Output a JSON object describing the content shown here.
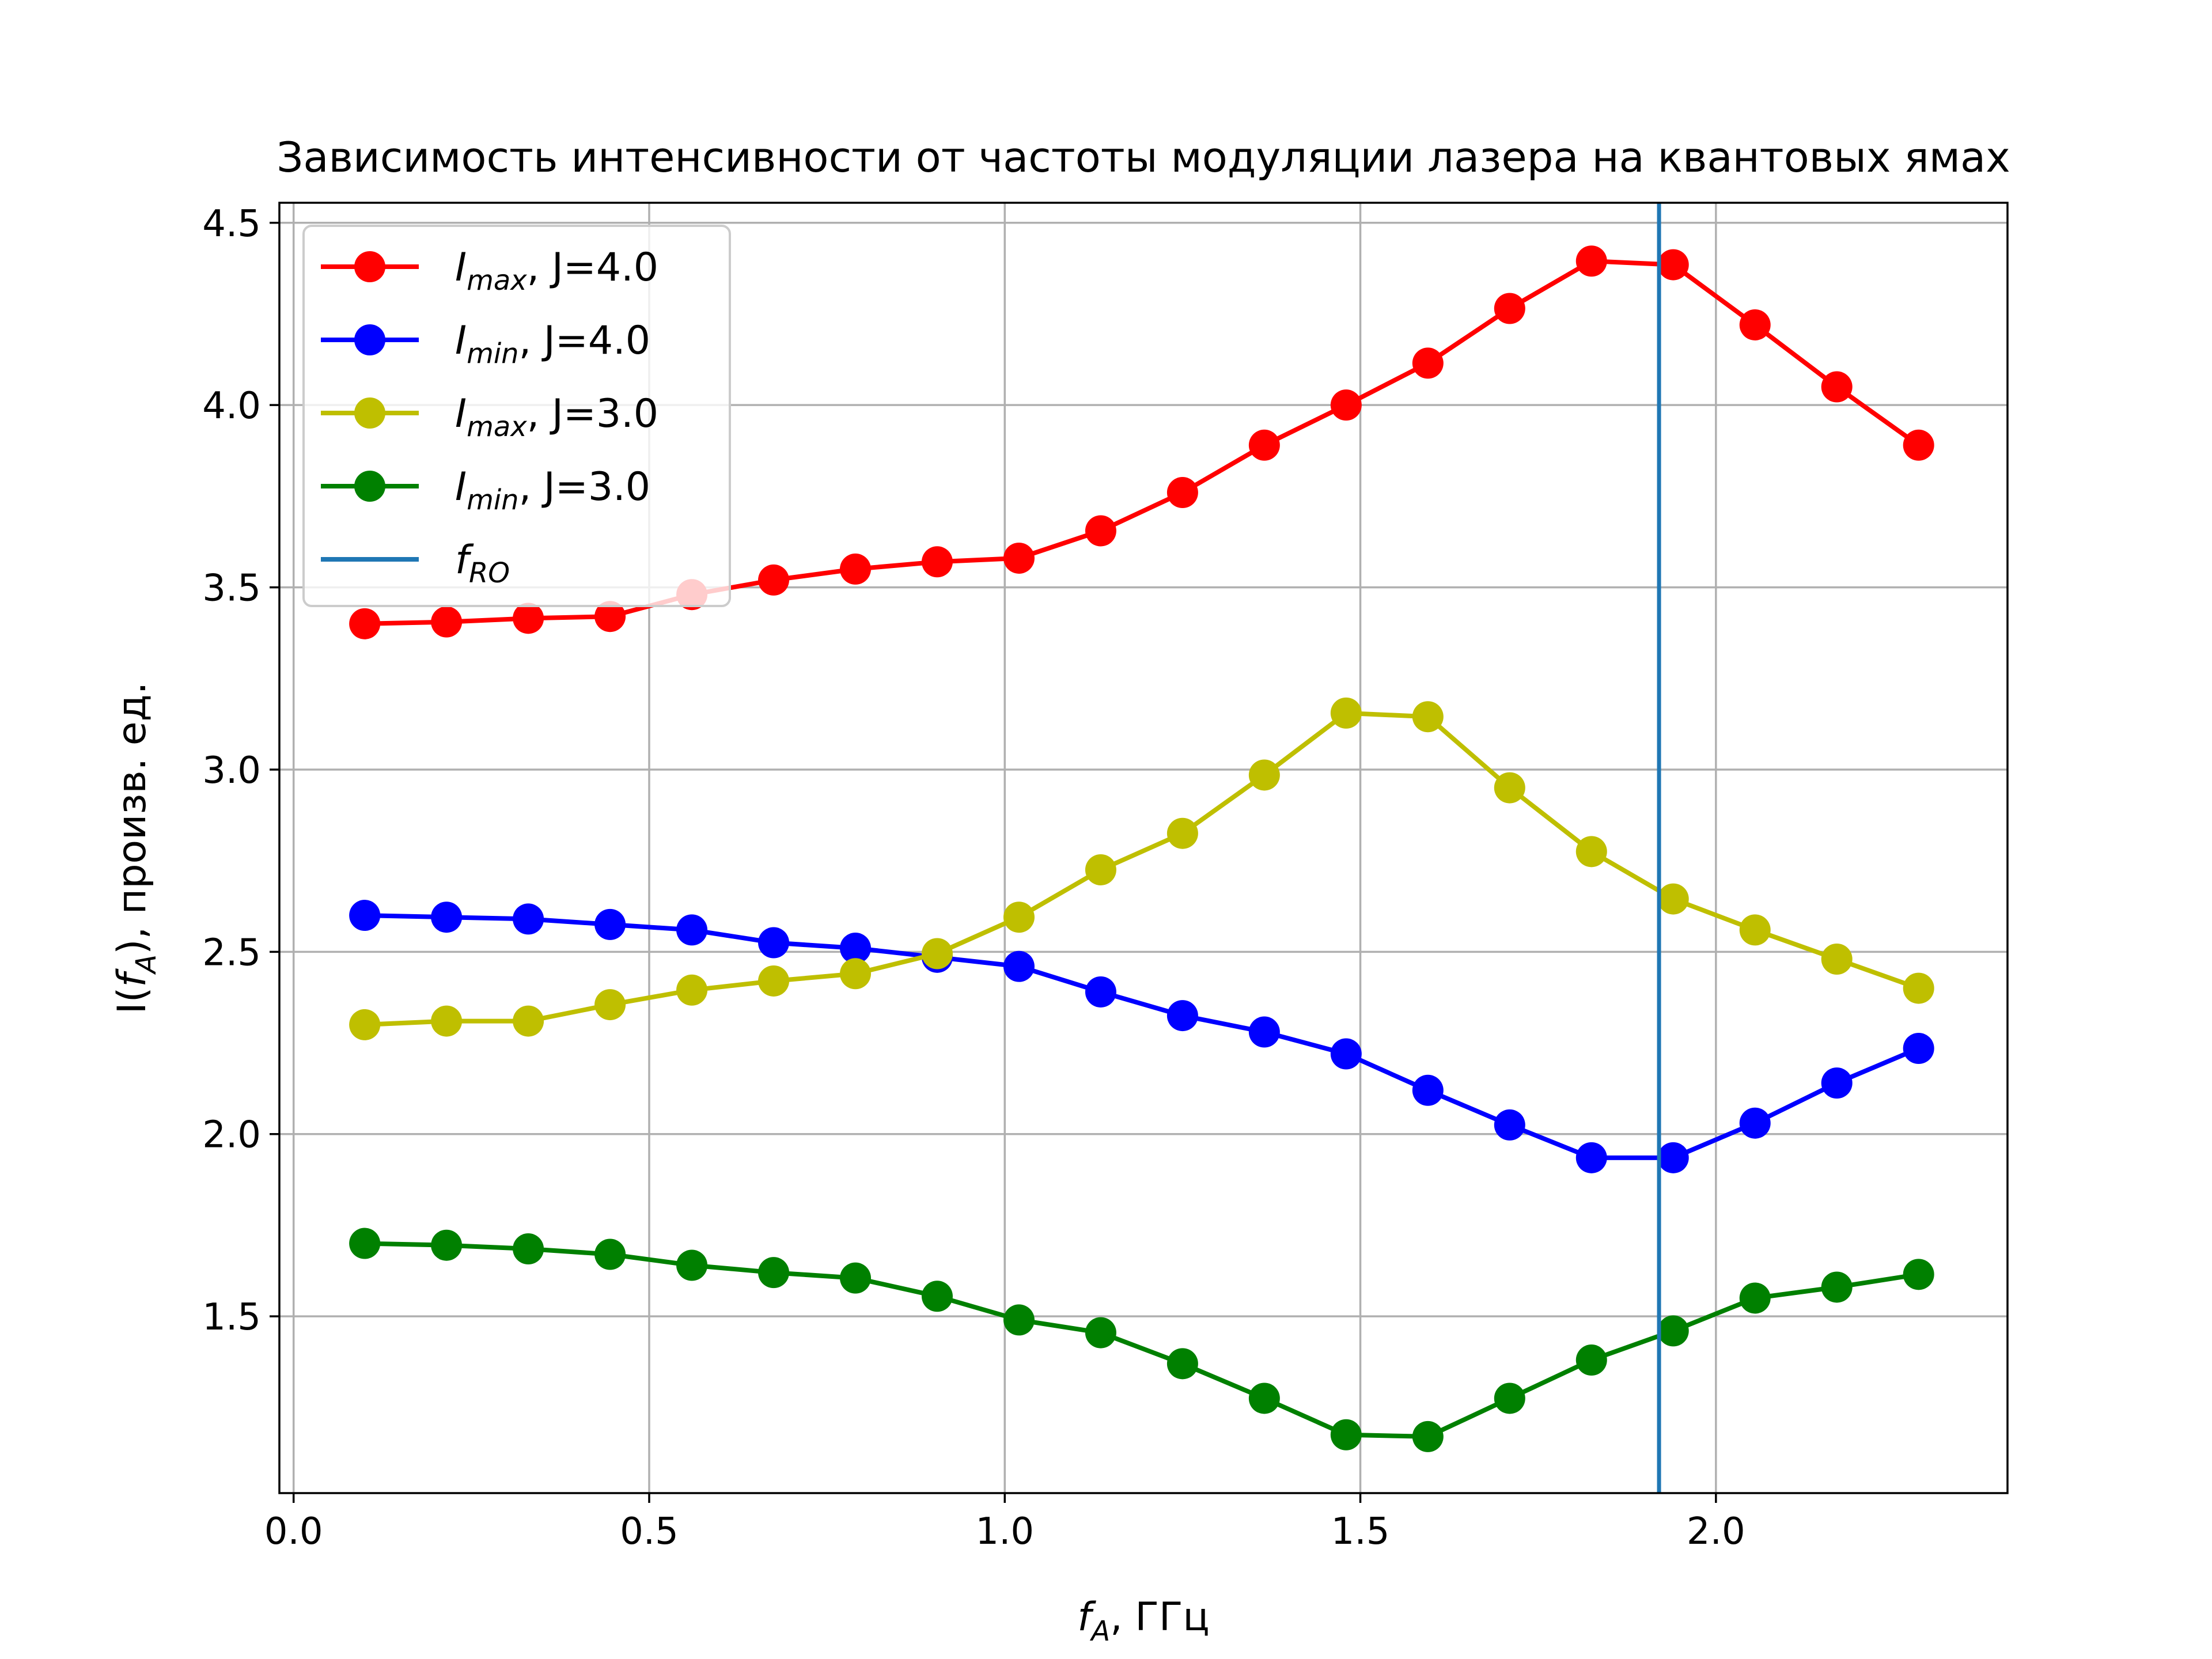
{
  "chart_data": {
    "type": "line",
    "title": "Зависимость интенсивности от частоты модуляции лазера на квантовых ямах",
    "xlabel": {
      "base": "f",
      "sub": "A",
      "rest": ", ГГц"
    },
    "ylabel": {
      "pre": "I(",
      "base": "f",
      "sub": "A",
      "rest": "), произв. ед."
    },
    "xlim": [
      -0.02,
      2.41
    ],
    "ylim": [
      1.015,
      4.555
    ],
    "xticks": [
      0.0,
      0.5,
      1.0,
      1.5,
      2.0
    ],
    "xtick_labels": [
      "0.0",
      "0.5",
      "1.0",
      "1.5",
      "2.0"
    ],
    "yticks": [
      1.5,
      2.0,
      2.5,
      3.0,
      3.5,
      4.0,
      4.5
    ],
    "ytick_labels": [
      "1.5",
      "2.0",
      "2.5",
      "3.0",
      "3.5",
      "4.0",
      "4.5"
    ],
    "grid": true,
    "legend_position": "top-left",
    "x": [
      0.1,
      0.215,
      0.33,
      0.445,
      0.56,
      0.675,
      0.79,
      0.905,
      1.02,
      1.135,
      1.25,
      1.365,
      1.48,
      1.595,
      1.71,
      1.825,
      1.94,
      2.055,
      2.17,
      2.285
    ],
    "series": [
      {
        "name": "I_max, J=4.0",
        "legend_base": "I",
        "legend_sub": "max",
        "legend_rest": ", J=4.0",
        "color": "#ff0000",
        "values": [
          3.4,
          3.405,
          3.415,
          3.42,
          3.48,
          3.52,
          3.55,
          3.57,
          3.58,
          3.655,
          3.76,
          3.89,
          4.0,
          4.115,
          4.265,
          4.395,
          4.385,
          4.22,
          4.05,
          3.89
        ]
      },
      {
        "name": "I_min, J=4.0",
        "legend_base": "I",
        "legend_sub": "min",
        "legend_rest": ", J=4.0",
        "color": "#0000ff",
        "values": [
          2.6,
          2.595,
          2.59,
          2.575,
          2.56,
          2.525,
          2.51,
          2.485,
          2.46,
          2.39,
          2.325,
          2.28,
          2.22,
          2.12,
          2.025,
          1.935,
          1.935,
          2.03,
          2.14,
          2.235
        ]
      },
      {
        "name": "I_max, J=3.0",
        "legend_base": "I",
        "legend_sub": "max",
        "legend_rest": ", J=3.0",
        "color": "#bfbf00",
        "values": [
          2.3,
          2.31,
          2.31,
          2.355,
          2.395,
          2.42,
          2.44,
          2.495,
          2.595,
          2.725,
          2.825,
          2.985,
          3.155,
          3.145,
          2.95,
          2.775,
          2.645,
          2.56,
          2.48,
          2.4
        ]
      },
      {
        "name": "I_min, J=3.0",
        "legend_base": "I",
        "legend_sub": "min",
        "legend_rest": ", J=3.0",
        "color": "#008000",
        "values": [
          1.7,
          1.695,
          1.685,
          1.67,
          1.64,
          1.62,
          1.605,
          1.555,
          1.49,
          1.455,
          1.37,
          1.275,
          1.175,
          1.17,
          1.275,
          1.38,
          1.46,
          1.55,
          1.58,
          1.615
        ]
      }
    ],
    "vline": {
      "name": "f_RO",
      "legend_base": "f",
      "legend_sub": "RO",
      "x": 1.92,
      "color": "#1f77b4"
    }
  }
}
